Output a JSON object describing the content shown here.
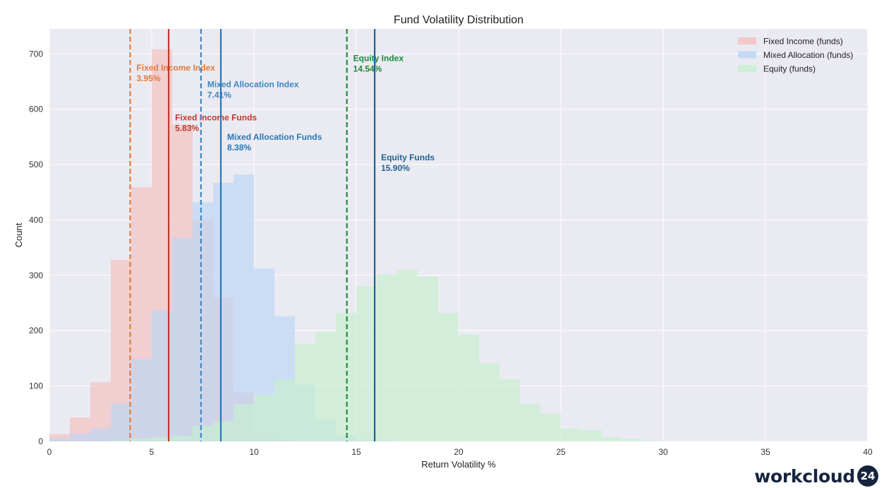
{
  "chart_data": {
    "type": "bar",
    "title": "Fund Volatility Distribution",
    "xlabel": "Return Volatility %",
    "ylabel": "Count",
    "xlim": [
      0,
      40
    ],
    "ylim": [
      0,
      745
    ],
    "xticks": [
      0,
      5,
      10,
      15,
      20,
      25,
      30,
      35,
      40
    ],
    "yticks": [
      0,
      100,
      200,
      300,
      400,
      500,
      600,
      700
    ],
    "grid": true,
    "legend_position": "top-right",
    "bin_width": 1,
    "series": [
      {
        "name": "Fixed Income (funds)",
        "color": "#f4c2c2",
        "bin_start": 0,
        "values": [
          13,
          43,
          107,
          328,
          459,
          708,
          572,
          401,
          260,
          88,
          18,
          6,
          1
        ]
      },
      {
        "name": "Mixed Allocation (funds)",
        "color": "#bdd7f5",
        "bin_start": 0,
        "values": [
          5,
          14,
          23,
          68,
          149,
          237,
          368,
          432,
          467,
          482,
          312,
          226,
          102,
          38,
          11,
          4,
          1
        ]
      },
      {
        "name": "Equity (funds)",
        "color": "#c8f0d0",
        "bin_start": 0,
        "values": [
          0,
          0,
          0,
          2,
          5,
          8,
          10,
          28,
          36,
          67,
          84,
          112,
          176,
          198,
          232,
          280,
          302,
          310,
          298,
          232,
          193,
          141,
          112,
          68,
          50,
          23,
          20,
          8,
          4,
          1
        ]
      }
    ],
    "reference_lines": [
      {
        "label": "Fixed Income Index",
        "value": 3.95,
        "value_label": "3.95%",
        "color": "#e07b39",
        "style": "dashed",
        "label_y": 670
      },
      {
        "label": "Fixed Income Funds",
        "value": 5.83,
        "value_label": "5.83%",
        "color": "#c0392b",
        "style": "solid",
        "label_y": 580
      },
      {
        "label": "Mixed Allocation Index",
        "value": 7.41,
        "value_label": "7.41%",
        "color": "#3d87c4",
        "style": "dashed",
        "label_y": 640
      },
      {
        "label": "Mixed Allocation Funds",
        "value": 8.38,
        "value_label": "8.38%",
        "color": "#2878b5",
        "style": "solid",
        "label_y": 545
      },
      {
        "label": "Equity Index",
        "value": 14.54,
        "value_label": "14.54%",
        "color": "#1f8a3c",
        "style": "dashed",
        "label_y": 687
      },
      {
        "label": "Equity Funds",
        "value": 15.9,
        "value_label": "15.90%",
        "color": "#1f6391",
        "style": "solid",
        "label_y": 508
      }
    ]
  },
  "branding": {
    "logo_text": "workcloud",
    "logo_badge": "24"
  }
}
